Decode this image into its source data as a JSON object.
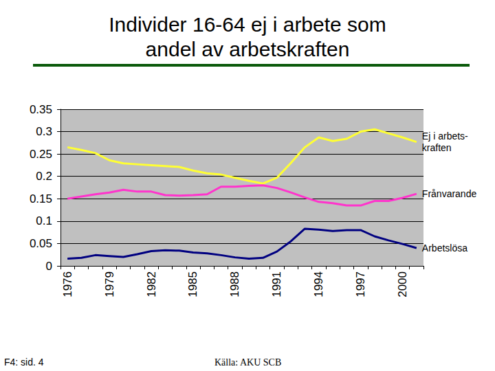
{
  "chart_data": {
    "type": "line",
    "title": "Individer 16-64 ej i arbete som\nandel av arbetskraften",
    "categories": [
      "1976",
      null,
      null,
      "1979",
      null,
      null,
      "1982",
      null,
      null,
      "1985",
      null,
      null,
      "1988",
      null,
      null,
      "1991",
      null,
      null,
      "1994",
      null,
      null,
      "1997",
      null,
      null,
      "2000",
      null
    ],
    "series": [
      {
        "name": "Ej i arbets-\nkraften",
        "color": "#ffff33",
        "values": [
          0.265,
          0.259,
          0.252,
          0.236,
          0.229,
          0.227,
          0.225,
          0.223,
          0.221,
          0.213,
          0.207,
          0.204,
          0.197,
          0.19,
          0.184,
          0.197,
          0.23,
          0.265,
          0.287,
          0.279,
          0.284,
          0.3,
          0.305,
          0.296,
          0.287,
          0.277
        ]
      },
      {
        "name": "Frånvarande",
        "color": "#ff33cc",
        "values": [
          0.15,
          0.155,
          0.16,
          0.164,
          0.17,
          0.166,
          0.166,
          0.158,
          0.157,
          0.158,
          0.16,
          0.177,
          0.177,
          0.179,
          0.18,
          0.174,
          0.164,
          0.153,
          0.143,
          0.14,
          0.135,
          0.135,
          0.145,
          0.145,
          0.152,
          0.161
        ]
      },
      {
        "name": "Arbetslösa",
        "color": "#000080",
        "values": [
          0.016,
          0.018,
          0.024,
          0.022,
          0.02,
          0.026,
          0.033,
          0.035,
          0.034,
          0.03,
          0.028,
          0.024,
          0.019,
          0.016,
          0.018,
          0.032,
          0.055,
          0.083,
          0.081,
          0.078,
          0.08,
          0.08,
          0.066,
          0.057,
          0.049,
          0.04
        ]
      }
    ],
    "ylim": [
      0,
      0.35
    ],
    "yticks": [
      0,
      0.05,
      0.1,
      0.15,
      0.2,
      0.25,
      0.3,
      0.35
    ],
    "grid": true,
    "annotations": [
      {
        "text": "F4: sid. 4"
      },
      {
        "text": "Källa: AKU SCB"
      }
    ]
  }
}
